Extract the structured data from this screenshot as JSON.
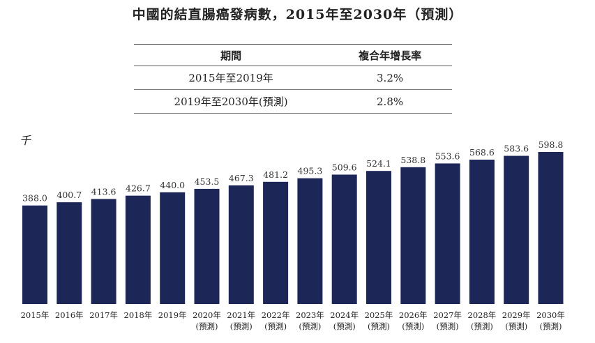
{
  "title": "中國的結直腸癌發病數，2015年至2030年（預測）",
  "cagr_table": {
    "headers": [
      "期間",
      "複合年增長率"
    ],
    "rows": [
      {
        "period": "2015年至2019年",
        "rate": "3.2%"
      },
      {
        "period": "2019年至2030年(預測)",
        "rate": "2.8%"
      }
    ]
  },
  "unit_label": "千",
  "chart_data": {
    "type": "bar",
    "categories": [
      "2015年",
      "2016年",
      "2017年",
      "2018年",
      "2019年",
      "2020年",
      "2021年",
      "2022年",
      "2023年",
      "2024年",
      "2025年",
      "2026年",
      "2027年",
      "2028年",
      "2029年",
      "2030年"
    ],
    "forecast_note": "(預測)",
    "forecast_from_index": 5,
    "values": [
      388.0,
      400.7,
      413.6,
      426.7,
      440.0,
      453.5,
      467.3,
      481.2,
      495.3,
      509.6,
      524.1,
      538.8,
      553.6,
      568.6,
      583.6,
      598.8
    ],
    "value_labels": [
      "388.0",
      "400.7",
      "413.6",
      "426.7",
      "440.0",
      "453.5",
      "467.3",
      "481.2",
      "495.3",
      "509.6",
      "524.1",
      "538.8",
      "553.6",
      "568.6",
      "583.6",
      "598.8"
    ],
    "bar_color": "#1c2657",
    "ylim": [
      0,
      598.8
    ]
  }
}
